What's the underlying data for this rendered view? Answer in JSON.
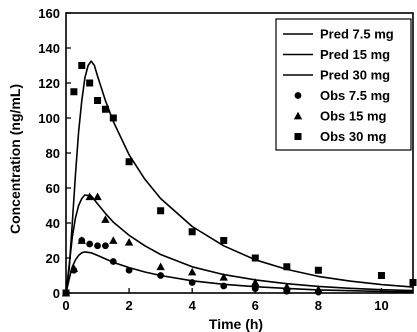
{
  "chart_data": {
    "type": "scatter",
    "title": "",
    "xlabel": "Time (h)",
    "ylabel": "Concentration (ng/mL)",
    "xlim": [
      0,
      11
    ],
    "ylim": [
      0,
      160
    ],
    "xticks": [
      0,
      2,
      4,
      6,
      8,
      10
    ],
    "xtick_labels": [
      "0",
      "2",
      "4",
      "6",
      "8",
      "10"
    ],
    "yticks": [
      0,
      20,
      40,
      60,
      80,
      100,
      120,
      140,
      160
    ],
    "grid": false,
    "legend_position": "top-right",
    "series": [
      {
        "name": "Pred 7.5 mg",
        "kind": "line",
        "color": "#000000",
        "x": [
          0,
          0.1,
          0.2,
          0.3,
          0.4,
          0.5,
          0.6,
          0.8,
          1.0,
          1.25,
          1.5,
          2,
          2.5,
          3,
          4,
          5,
          6,
          7,
          8,
          9,
          10,
          11
        ],
        "y": [
          0,
          8,
          15,
          19,
          21.5,
          23,
          23.5,
          23,
          21.5,
          19.5,
          17.5,
          14.5,
          12,
          10,
          7,
          5,
          3.6,
          2.6,
          1.8,
          1.3,
          0.9,
          0.6
        ]
      },
      {
        "name": "Pred 15 mg",
        "kind": "line",
        "color": "#000000",
        "x": [
          0,
          0.1,
          0.2,
          0.3,
          0.4,
          0.5,
          0.6,
          0.8,
          1.0,
          1.25,
          1.5,
          2,
          2.5,
          3,
          4,
          5,
          6,
          7,
          8,
          9,
          10,
          11
        ],
        "y": [
          0,
          16,
          32,
          43,
          50,
          54,
          56,
          55.5,
          51,
          45.5,
          40.5,
          33,
          27,
          22,
          15,
          10.5,
          7.5,
          5.3,
          3.8,
          2.7,
          1.9,
          1.4
        ]
      },
      {
        "name": "Pred 30 mg",
        "kind": "line",
        "color": "#000000",
        "x": [
          0,
          0.1,
          0.2,
          0.3,
          0.4,
          0.5,
          0.6,
          0.7,
          0.8,
          0.9,
          1.0,
          1.25,
          1.5,
          2,
          2.5,
          3,
          4,
          5,
          6,
          7,
          8,
          9,
          10,
          11
        ],
        "y": [
          0,
          14,
          40,
          68,
          92,
          110,
          123,
          130,
          132.5,
          130,
          124,
          110,
          98,
          79,
          65,
          54,
          38,
          27,
          19,
          13.5,
          9.5,
          6.8,
          4.8,
          3.4
        ]
      },
      {
        "name": "Obs 7.5 mg",
        "kind": "points",
        "marker": "circle",
        "color": "#000000",
        "x": [
          0,
          0.25,
          0.5,
          0.75,
          1.0,
          1.25,
          1.5,
          2,
          3,
          4,
          5,
          6,
          7,
          8
        ],
        "y": [
          0,
          13,
          30,
          28,
          27,
          27,
          18,
          13,
          10,
          6,
          4,
          2.5,
          1,
          0.5
        ]
      },
      {
        "name": "Obs 15 mg",
        "kind": "points",
        "marker": "triangle",
        "color": "#000000",
        "x": [
          0,
          0.25,
          0.5,
          0.75,
          1.0,
          1.25,
          1.5,
          2,
          3,
          4,
          5,
          6,
          7,
          8
        ],
        "y": [
          0,
          14,
          30,
          55,
          55,
          42,
          30,
          29,
          15,
          12,
          9,
          6,
          3.5,
          2
        ]
      },
      {
        "name": "Obs 30 mg",
        "kind": "points",
        "marker": "square",
        "color": "#000000",
        "x": [
          0,
          0.25,
          0.5,
          0.75,
          1.0,
          1.25,
          1.5,
          2,
          3,
          4,
          5,
          6,
          7,
          8,
          10,
          11
        ],
        "y": [
          0,
          115,
          130,
          120,
          110,
          105,
          100,
          75,
          47,
          35,
          30,
          20,
          15,
          13,
          10,
          6
        ]
      }
    ]
  }
}
